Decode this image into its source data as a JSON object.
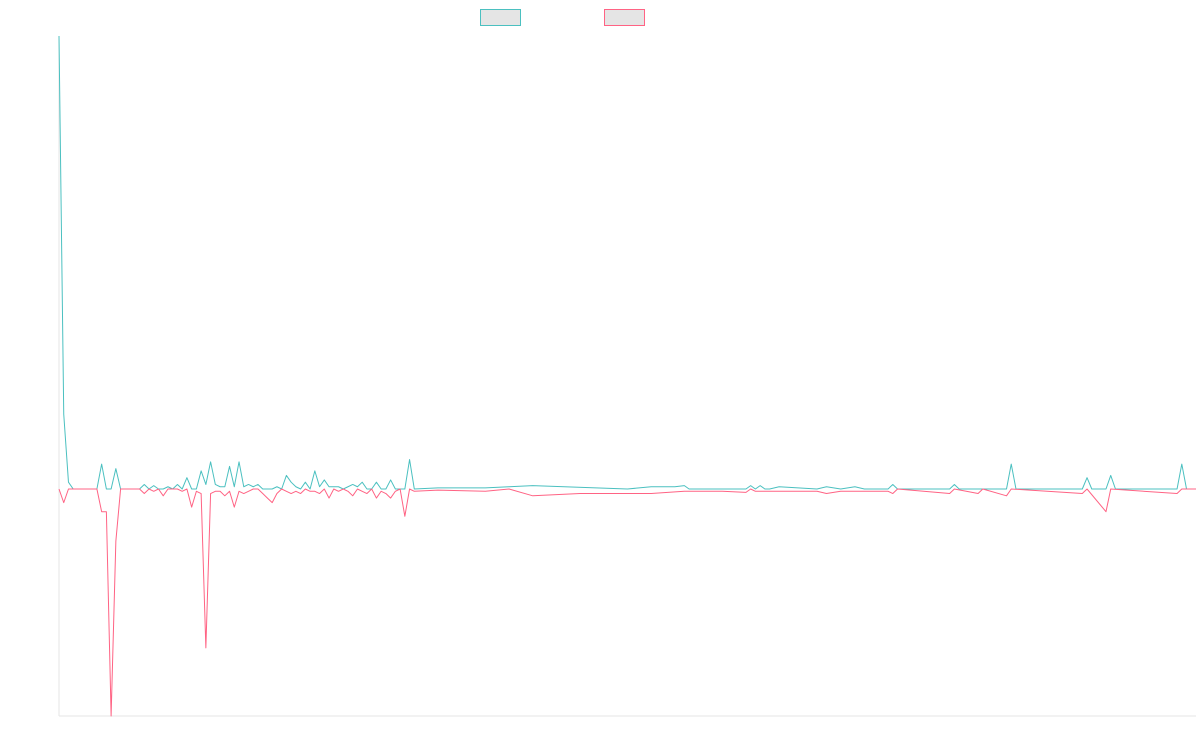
{
  "chart_data": {
    "type": "line",
    "title": "",
    "xlabel": "",
    "ylabel": "",
    "grid": false,
    "legend_position": "top-center",
    "x_count": 240,
    "y_baseline": 0,
    "ylim": [
      -100,
      200
    ],
    "series": [
      {
        "label": "",
        "color": "#4bc0c0",
        "fill": "#e5e5e5",
        "points": [
          [
            0,
            200
          ],
          [
            1,
            33
          ],
          [
            2,
            3
          ],
          [
            3,
            0
          ],
          [
            8,
            0
          ],
          [
            9,
            11
          ],
          [
            10,
            0
          ],
          [
            11,
            0
          ],
          [
            12,
            9
          ],
          [
            13,
            0
          ],
          [
            17,
            0
          ],
          [
            18,
            2
          ],
          [
            19,
            0
          ],
          [
            20,
            1.5
          ],
          [
            21,
            0
          ],
          [
            22,
            0
          ],
          [
            23,
            1
          ],
          [
            24,
            0
          ],
          [
            25,
            2
          ],
          [
            26,
            0
          ],
          [
            27,
            5
          ],
          [
            28,
            0
          ],
          [
            29,
            0
          ],
          [
            30,
            8
          ],
          [
            31,
            2
          ],
          [
            32,
            12
          ],
          [
            33,
            2
          ],
          [
            34,
            1
          ],
          [
            35,
            1
          ],
          [
            36,
            10
          ],
          [
            37,
            1
          ],
          [
            38,
            12
          ],
          [
            39,
            1
          ],
          [
            40,
            2
          ],
          [
            41,
            1
          ],
          [
            42,
            2
          ],
          [
            43,
            0
          ],
          [
            44,
            0
          ],
          [
            45,
            0
          ],
          [
            46,
            1
          ],
          [
            47,
            0
          ],
          [
            48,
            6
          ],
          [
            49,
            3
          ],
          [
            50,
            1
          ],
          [
            51,
            0
          ],
          [
            52,
            3
          ],
          [
            53,
            0
          ],
          [
            54,
            8
          ],
          [
            55,
            1
          ],
          [
            56,
            4
          ],
          [
            57,
            1
          ],
          [
            58,
            1
          ],
          [
            59,
            1
          ],
          [
            60,
            0
          ],
          [
            61,
            1
          ],
          [
            62,
            2
          ],
          [
            63,
            1
          ],
          [
            64,
            3
          ],
          [
            65,
            0
          ],
          [
            66,
            0
          ],
          [
            67,
            3
          ],
          [
            68,
            0
          ],
          [
            69,
            0
          ],
          [
            70,
            4
          ],
          [
            71,
            0
          ],
          [
            72,
            0
          ],
          [
            73,
            0
          ],
          [
            74,
            13
          ],
          [
            75,
            0
          ],
          [
            80,
            0.5
          ],
          [
            90,
            0.5
          ],
          [
            95,
            1
          ],
          [
            100,
            1.5
          ],
          [
            120,
            0
          ],
          [
            125,
            1
          ],
          [
            130,
            1
          ],
          [
            132,
            1.5
          ],
          [
            133,
            0
          ],
          [
            145,
            0
          ],
          [
            146,
            1.5
          ],
          [
            147,
            0
          ],
          [
            148,
            1.5
          ],
          [
            149,
            0
          ],
          [
            150,
            0
          ],
          [
            152,
            1
          ],
          [
            160,
            0
          ],
          [
            162,
            1
          ],
          [
            165,
            0
          ],
          [
            168,
            1
          ],
          [
            170,
            0
          ],
          [
            175,
            0
          ],
          [
            176,
            2
          ],
          [
            177,
            0
          ],
          [
            188,
            0
          ],
          [
            189,
            2
          ],
          [
            190,
            0
          ],
          [
            200,
            0
          ],
          [
            201,
            11
          ],
          [
            202,
            0
          ],
          [
            216,
            0
          ],
          [
            217,
            5
          ],
          [
            218,
            0
          ],
          [
            221,
            0
          ],
          [
            222,
            6
          ],
          [
            223,
            0
          ],
          [
            236,
            0
          ],
          [
            237,
            11
          ],
          [
            238,
            0
          ],
          [
            240,
            0
          ]
        ]
      },
      {
        "label": "",
        "color": "#ff6384",
        "fill": "#e5e5e5",
        "points": [
          [
            0,
            0
          ],
          [
            1,
            -6
          ],
          [
            2,
            0
          ],
          [
            8,
            0
          ],
          [
            9,
            -10
          ],
          [
            10,
            -10
          ],
          [
            11,
            -100
          ],
          [
            12,
            -23
          ],
          [
            13,
            0
          ],
          [
            17,
            0
          ],
          [
            18,
            -2
          ],
          [
            19,
            0
          ],
          [
            20,
            -1
          ],
          [
            21,
            0
          ],
          [
            22,
            -3
          ],
          [
            23,
            0
          ],
          [
            25,
            0
          ],
          [
            26,
            -1
          ],
          [
            27,
            0
          ],
          [
            28,
            -8
          ],
          [
            29,
            -1
          ],
          [
            30,
            -2
          ],
          [
            31,
            -70
          ],
          [
            32,
            -2
          ],
          [
            33,
            -1
          ],
          [
            34,
            -1
          ],
          [
            35,
            -3
          ],
          [
            36,
            -1
          ],
          [
            37,
            -8
          ],
          [
            38,
            -1
          ],
          [
            39,
            -2
          ],
          [
            40,
            -1
          ],
          [
            41,
            0
          ],
          [
            42,
            0
          ],
          [
            43,
            -2
          ],
          [
            44,
            -4
          ],
          [
            45,
            -6
          ],
          [
            46,
            -2
          ],
          [
            47,
            0
          ],
          [
            48,
            -1
          ],
          [
            49,
            -2
          ],
          [
            50,
            -1
          ],
          [
            51,
            -2
          ],
          [
            52,
            0
          ],
          [
            53,
            -1
          ],
          [
            54,
            -1
          ],
          [
            55,
            -2
          ],
          [
            56,
            0
          ],
          [
            57,
            -4
          ],
          [
            58,
            0
          ],
          [
            59,
            -1
          ],
          [
            60,
            0
          ],
          [
            61,
            -1
          ],
          [
            62,
            -3
          ],
          [
            63,
            0
          ],
          [
            64,
            -1
          ],
          [
            65,
            -2
          ],
          [
            66,
            0
          ],
          [
            67,
            -4
          ],
          [
            68,
            -1
          ],
          [
            69,
            -2
          ],
          [
            70,
            -4
          ],
          [
            71,
            -1
          ],
          [
            72,
            0
          ],
          [
            73,
            -12
          ],
          [
            74,
            0
          ],
          [
            75,
            -1
          ],
          [
            80,
            -0.5
          ],
          [
            90,
            -1
          ],
          [
            95,
            0
          ],
          [
            100,
            -3
          ],
          [
            110,
            -2
          ],
          [
            120,
            -2
          ],
          [
            125,
            -2
          ],
          [
            132,
            -1
          ],
          [
            140,
            -1
          ],
          [
            145,
            -1.5
          ],
          [
            146,
            0
          ],
          [
            147,
            -1
          ],
          [
            150,
            -1
          ],
          [
            152,
            -1
          ],
          [
            160,
            -1
          ],
          [
            162,
            -2
          ],
          [
            165,
            -1
          ],
          [
            170,
            -1
          ],
          [
            175,
            -1
          ],
          [
            176,
            -2
          ],
          [
            177,
            0
          ],
          [
            188,
            -2
          ],
          [
            189,
            0
          ],
          [
            194,
            -2
          ],
          [
            195,
            0
          ],
          [
            200,
            -3
          ],
          [
            201,
            0
          ],
          [
            216,
            -2
          ],
          [
            217,
            0
          ],
          [
            221,
            -10
          ],
          [
            222,
            0
          ],
          [
            236,
            -2
          ],
          [
            237,
            0
          ],
          [
            240,
            0
          ]
        ]
      }
    ]
  }
}
